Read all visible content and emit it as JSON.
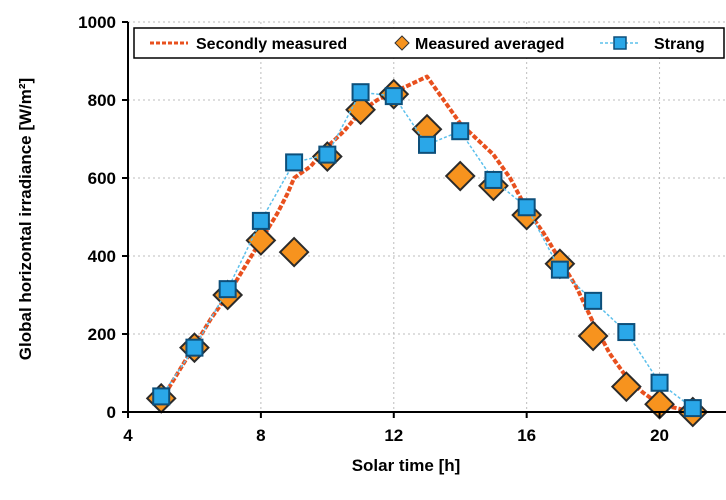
{
  "chart_data": {
    "type": "line",
    "title": "",
    "xlabel": "Solar time [h]",
    "ylabel": "Global horizontal irradiance [W/m²]",
    "xlim": [
      4,
      22
    ],
    "ylim": [
      0,
      1000
    ],
    "x_ticks": [
      "4",
      "8",
      "12",
      "16",
      "20"
    ],
    "y_ticks": [
      "0",
      "200",
      "400",
      "600",
      "800",
      "1000"
    ],
    "grid": true,
    "legend_position": "top",
    "series": [
      {
        "name": "Secondly measured",
        "style": "dashed-line",
        "color": "#e8501e",
        "x": [
          5,
          5.5,
          6,
          6.5,
          7,
          7.5,
          8,
          8.5,
          8.8,
          9,
          9.5,
          10,
          10.5,
          11,
          11.5,
          12,
          12.5,
          13,
          13.5,
          14,
          14.5,
          15,
          15.5,
          16,
          16.5,
          17,
          17.5,
          18,
          18.5,
          19,
          19.5,
          20,
          20.5,
          21
        ],
        "y": [
          30,
          100,
          170,
          240,
          300,
          370,
          440,
          510,
          560,
          600,
          630,
          680,
          720,
          770,
          800,
          820,
          840,
          860,
          800,
          740,
          700,
          660,
          600,
          520,
          460,
          390,
          320,
          230,
          150,
          90,
          50,
          20,
          10,
          0
        ]
      },
      {
        "name": "Measured averaged",
        "style": "diamond-markers",
        "color": "#f7931e",
        "x": [
          5,
          6,
          7,
          8,
          9,
          10,
          11,
          12,
          13,
          14,
          15,
          16,
          17,
          18,
          19,
          20,
          21
        ],
        "y": [
          35,
          165,
          300,
          440,
          410,
          655,
          775,
          815,
          725,
          605,
          580,
          505,
          380,
          195,
          65,
          20,
          0
        ]
      },
      {
        "name": "Strang",
        "style": "square-markers-line",
        "color": "#2aa7e8",
        "x": [
          5,
          6,
          7,
          8,
          9,
          10,
          11,
          12,
          13,
          14,
          15,
          16,
          17,
          18,
          19,
          20,
          21
        ],
        "y": [
          40,
          165,
          315,
          490,
          640,
          660,
          820,
          810,
          685,
          720,
          595,
          525,
          365,
          285,
          205,
          75,
          10
        ]
      }
    ]
  }
}
